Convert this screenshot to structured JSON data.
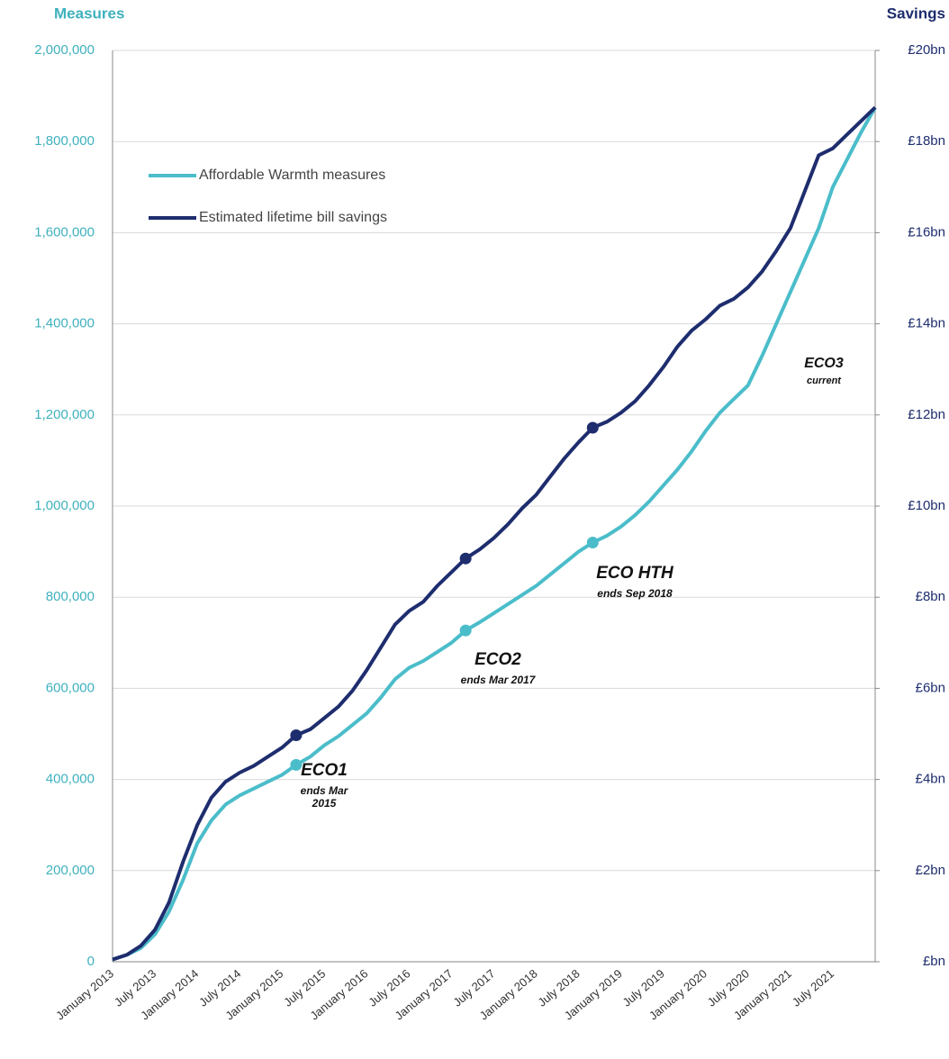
{
  "chart_data": {
    "type": "line",
    "y_label": "Measures",
    "y2_label": "Savings",
    "categories": [
      "January 2013",
      null,
      null,
      "July 2013",
      null,
      null,
      "January 2014",
      null,
      null,
      "July 2014",
      null,
      null,
      "January 2015",
      null,
      null,
      "July 2015",
      null,
      null,
      "January 2016",
      null,
      null,
      "July 2016",
      null,
      null,
      "January 2017",
      null,
      null,
      "July 2017",
      null,
      null,
      "January 2018",
      null,
      null,
      "July 2018",
      null,
      null,
      "January 2019",
      null,
      null,
      "July 2019",
      null,
      null,
      "January 2020",
      null,
      null,
      "July 2020",
      null,
      null,
      "January 2021",
      null,
      null,
      "July 2021",
      null,
      null,
      null
    ],
    "series": [
      {
        "name": "Affordable Warmth measures",
        "color": "#4bbdca",
        "values": [
          5000,
          15000,
          30000,
          60000,
          110000,
          180000,
          260000,
          310000,
          345000,
          365000,
          380000,
          395000,
          410000,
          432000,
          450000,
          475000,
          495000,
          520000,
          545000,
          580000,
          620000,
          645000,
          660000,
          680000,
          700000,
          727000,
          745000,
          765000,
          785000,
          805000,
          825000,
          850000,
          875000,
          900000,
          920000,
          935000,
          955000,
          980000,
          1010000,
          1045000,
          1080000,
          1120000,
          1165000,
          1205000,
          1235000,
          1265000,
          1330000,
          1400000,
          1470000,
          1540000,
          1610000,
          1700000,
          1760000,
          1820000,
          1875000
        ]
      },
      {
        "name": "Estimated lifetime bill savings",
        "color": "#1e2d6e",
        "axis": "y2",
        "values": [
          0.05,
          0.15,
          0.35,
          0.7,
          1.3,
          2.2,
          3.0,
          3.6,
          3.95,
          4.15,
          4.3,
          4.5,
          4.7,
          4.97,
          5.1,
          5.35,
          5.6,
          5.95,
          6.4,
          6.9,
          7.4,
          7.7,
          7.9,
          8.25,
          8.55,
          8.85,
          9.05,
          9.3,
          9.6,
          9.95,
          10.25,
          10.65,
          11.05,
          11.4,
          11.72,
          11.85,
          12.05,
          12.3,
          12.65,
          13.05,
          13.5,
          13.85,
          14.1,
          14.4,
          14.55,
          14.8,
          15.15,
          15.6,
          16.1,
          16.9,
          17.7,
          17.85,
          18.15,
          18.45,
          18.75
        ]
      }
    ],
    "ylim": [
      0,
      2000000
    ],
    "yticks": [
      0,
      {
        "value": 200000,
        "label": "200,000"
      },
      {
        "value": 400000,
        "label": "400,000"
      },
      {
        "value": 600000,
        "label": "600,000"
      },
      {
        "value": 800000,
        "label": "800,000"
      },
      {
        "value": 1000000,
        "label": "1,000,000"
      },
      {
        "value": 1200000,
        "label": "1,200,000"
      },
      {
        "value": 1400000,
        "label": "1,400,000"
      },
      {
        "value": 1600000,
        "label": "1,600,000"
      },
      {
        "value": 1800000,
        "label": "1,800,000"
      },
      {
        "value": 2000000,
        "label": "2,000,000"
      }
    ],
    "y2lim": [
      0,
      20
    ],
    "y2ticks": [
      {
        "value": 0,
        "label": "£bn"
      },
      {
        "value": 2,
        "label": "£2bn"
      },
      {
        "value": 4,
        "label": "£4bn"
      },
      {
        "value": 6,
        "label": "£6bn"
      },
      {
        "value": 8,
        "label": "£8bn"
      },
      {
        "value": 10,
        "label": "£10bn"
      },
      {
        "value": 12,
        "label": "£12bn"
      },
      {
        "value": 14,
        "label": "£14bn"
      },
      {
        "value": 16,
        "label": "£16bn"
      },
      {
        "value": 18,
        "label": "£18bn"
      },
      {
        "value": 20,
        "label": "£20bn"
      }
    ],
    "grid": true,
    "legend": "top-left",
    "annotations": [
      {
        "title": "ECO1",
        "note": "ends Mar 2015"
      },
      {
        "title": "ECO2",
        "note": "ends Mar 2017"
      },
      {
        "title": "ECO HTH",
        "note": "ends Sep 2018"
      },
      {
        "title": "ECO3",
        "note": "current"
      }
    ]
  }
}
